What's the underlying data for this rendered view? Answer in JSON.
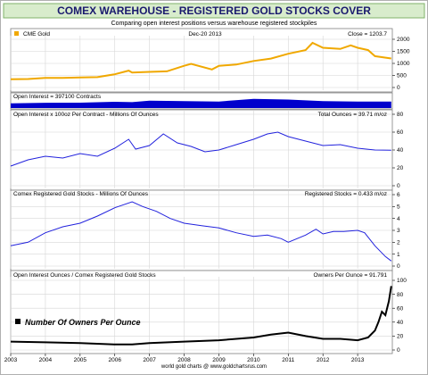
{
  "header": {
    "title": "COMEX WAREHOUSE - REGISTERED GOLD STOCKS COVER",
    "subtitle": "Comparing open interest positions versus warehouse registered stockpiles"
  },
  "footer": {
    "source": "world gold charts @ www.goldchartsrus.com"
  },
  "colors": {
    "banner": "#d8eccc",
    "banner_border": "#7fb26a",
    "title": "#1a1a6e",
    "gold": "#f0a800",
    "oi": "#0000cc",
    "line_blue": "#2222dd",
    "black": "#000000",
    "frame": "#808080",
    "grid": "#d6d6d6"
  },
  "chart_data": [
    {
      "type": "line",
      "panel": "gold",
      "date_label": "Dec-20 2013",
      "legend": "CME Gold",
      "readout": "Close = 1203.7",
      "ylim": [
        0,
        2000
      ],
      "yticks": [
        0,
        500,
        1000,
        1500,
        2000
      ],
      "xticks": [
        "2003",
        "2004",
        "2005",
        "2006",
        "2007",
        "2008",
        "2009",
        "2010",
        "2011",
        "2012",
        "2013"
      ],
      "series": [
        {
          "name": "CME Gold",
          "x": [
            2003.0,
            2003.5,
            2004.0,
            2004.5,
            2005.0,
            2005.5,
            2006.0,
            2006.4,
            2006.5,
            2007.0,
            2007.5,
            2008.0,
            2008.2,
            2008.8,
            2009.0,
            2009.5,
            2010.0,
            2010.5,
            2011.0,
            2011.5,
            2011.7,
            2012.0,
            2012.5,
            2012.8,
            2013.0,
            2013.3,
            2013.5,
            2013.97
          ],
          "values": [
            340,
            350,
            400,
            400,
            420,
            430,
            550,
            700,
            620,
            650,
            670,
            900,
            980,
            750,
            900,
            950,
            1100,
            1200,
            1400,
            1550,
            1850,
            1650,
            1600,
            1750,
            1650,
            1550,
            1300,
            1204
          ]
        }
      ]
    },
    {
      "type": "bar",
      "panel": "open-interest",
      "readout": "Open Interest = 397100 Contracts",
      "series": [
        {
          "name": "Open Interest",
          "x": [
            2003.0,
            2004.0,
            2005.0,
            2006.0,
            2006.5,
            2007.0,
            2008.0,
            2009.0,
            2010.0,
            2011.0,
            2012.0,
            2013.0,
            2013.97
          ],
          "values": [
            290000,
            320000,
            330000,
            380000,
            360000,
            450000,
            420000,
            400000,
            560000,
            520000,
            420000,
            400000,
            397100
          ]
        }
      ]
    },
    {
      "type": "line",
      "panel": "total-ounces",
      "readout": "Open Interest x 100oz Per Contract - Millions Of Ounces",
      "total": "Total Ounces = 39.71 m/oz",
      "ylim": [
        0,
        80
      ],
      "yticks": [
        0,
        20,
        40,
        60,
        80
      ],
      "series": [
        {
          "name": "Total Ounces",
          "x": [
            2003.0,
            2003.5,
            2004.0,
            2004.5,
            2005.0,
            2005.5,
            2006.0,
            2006.4,
            2006.6,
            2007.0,
            2007.4,
            2007.8,
            2008.2,
            2008.6,
            2009.0,
            2009.5,
            2010.0,
            2010.4,
            2010.7,
            2011.0,
            2011.5,
            2012.0,
            2012.5,
            2013.0,
            2013.5,
            2013.97
          ],
          "values": [
            22,
            29,
            33,
            31,
            36,
            33,
            42,
            52,
            41,
            45,
            58,
            48,
            44,
            38,
            40,
            46,
            52,
            58,
            60,
            55,
            50,
            45,
            46,
            42,
            40,
            39.71
          ]
        }
      ]
    },
    {
      "type": "line",
      "panel": "registered-stocks",
      "readout": "Comex Registered Gold Stocks - Millions Of Ounces",
      "total": "Registered Stocks = 0.433 m/oz",
      "ylim": [
        0,
        6
      ],
      "yticks": [
        0,
        1,
        2,
        3,
        4,
        5,
        6
      ],
      "series": [
        {
          "name": "Registered Stocks",
          "x": [
            2003.0,
            2003.5,
            2004.0,
            2004.5,
            2005.0,
            2005.5,
            2006.0,
            2006.5,
            2006.8,
            2007.2,
            2007.6,
            2008.0,
            2008.5,
            2009.0,
            2009.5,
            2010.0,
            2010.4,
            2010.8,
            2011.0,
            2011.5,
            2011.8,
            2012.0,
            2012.3,
            2012.6,
            2013.0,
            2013.2,
            2013.5,
            2013.8,
            2013.97
          ],
          "values": [
            1.7,
            2.0,
            2.8,
            3.3,
            3.6,
            4.2,
            4.9,
            5.4,
            5.0,
            4.6,
            4.0,
            3.6,
            3.4,
            3.2,
            2.8,
            2.5,
            2.6,
            2.3,
            2.0,
            2.6,
            3.1,
            2.7,
            2.9,
            2.9,
            3.0,
            2.8,
            1.7,
            0.8,
            0.43
          ]
        }
      ]
    },
    {
      "type": "line",
      "panel": "owners-per-ounce",
      "readout": "Open Interest Ounces / Comex Registered Gold Stocks",
      "total": "Owners Per Ounce = 91.791",
      "legend": "Number Of Owners Per Ounce",
      "ylim": [
        0,
        100
      ],
      "yticks": [
        0,
        20,
        40,
        60,
        80,
        100
      ],
      "series": [
        {
          "name": "Number Of Owners Per Ounce",
          "x": [
            2003.0,
            2004.0,
            2005.0,
            2006.0,
            2006.5,
            2007.0,
            2008.0,
            2009.0,
            2010.0,
            2010.5,
            2011.0,
            2011.5,
            2012.0,
            2012.5,
            2013.0,
            2013.3,
            2013.5,
            2013.6,
            2013.7,
            2013.8,
            2013.9,
            2013.97
          ],
          "values": [
            12,
            11,
            10,
            8,
            8,
            10,
            12,
            14,
            18,
            22,
            25,
            20,
            16,
            16,
            14,
            18,
            28,
            40,
            55,
            50,
            70,
            91.79
          ]
        }
      ]
    }
  ]
}
